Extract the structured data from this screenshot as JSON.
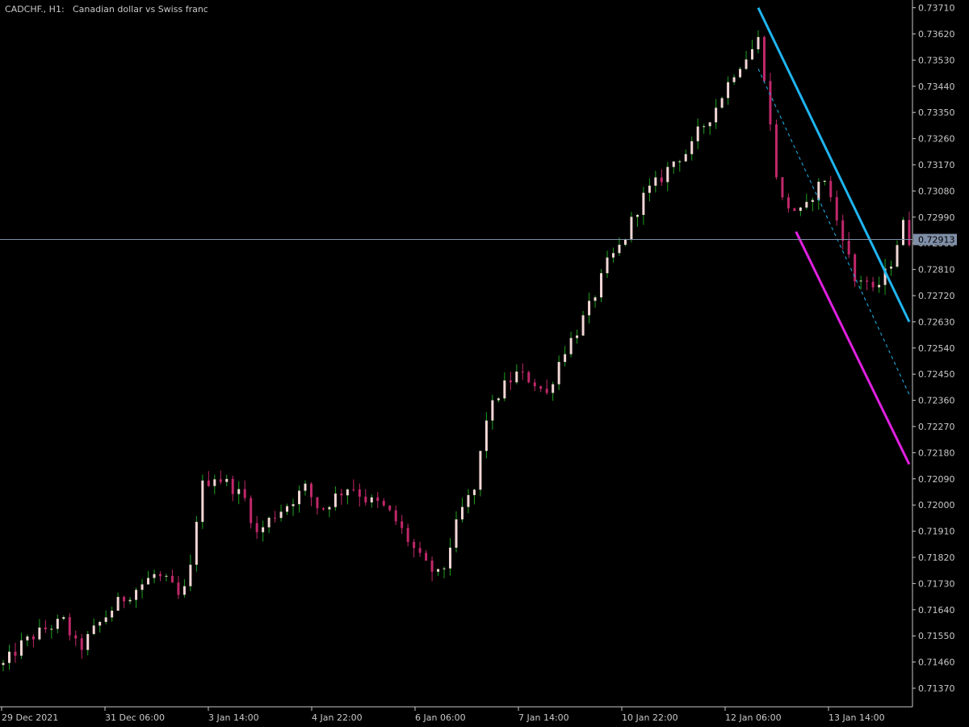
{
  "header": {
    "symbol": "CADCHF., H1:",
    "description": "Canadian dollar vs Swiss franc"
  },
  "colors": {
    "background": "#000000",
    "axis": "#c8c8c8",
    "bull_candle": "#20a020",
    "bear_candle": "#c0286a",
    "body_light": "#f2d6d6",
    "channel_upper": "#1fb5f0",
    "channel_lower": "#e020e0",
    "channel_mid": "#1fb5f0",
    "price_line": "#8090a8",
    "price_tag": "#8090a8"
  },
  "chart_data": {
    "type": "candlestick",
    "instrument": "CADCHF.",
    "timeframe": "H1",
    "ylim": [
      0.7132,
      0.7372
    ],
    "y_ticks": [
      "0.73710",
      "0.73620",
      "0.73530",
      "0.73440",
      "0.73350",
      "0.73260",
      "0.73170",
      "0.73080",
      "0.72990",
      "0.72900",
      "0.72810",
      "0.72720",
      "0.72630",
      "0.72540",
      "0.72450",
      "0.72360",
      "0.72270",
      "0.72180",
      "0.72090",
      "0.72000",
      "0.71910",
      "0.71820",
      "0.71730",
      "0.71640",
      "0.71550",
      "0.71460",
      "0.71370"
    ],
    "x_ticks": [
      "29 Dec 2021",
      "31 Dec 06:00",
      "3 Jan 14:00",
      "4 Jan 22:00",
      "6 Jan 06:00",
      "7 Jan 14:00",
      "10 Jan 22:00",
      "12 Jan 06:00",
      "13 Jan 14:00"
    ],
    "current_price": "0.72913",
    "close_path": [
      [
        0,
        0.7145
      ],
      [
        12,
        0.7152
      ],
      [
        20,
        0.7155
      ],
      [
        30,
        0.7158
      ],
      [
        40,
        0.716
      ],
      [
        50,
        0.715
      ],
      [
        60,
        0.7157
      ],
      [
        75,
        0.7166
      ],
      [
        90,
        0.7172
      ],
      [
        100,
        0.7176
      ],
      [
        110,
        0.7173
      ],
      [
        118,
        0.7167
      ],
      [
        125,
        0.718
      ],
      [
        130,
        0.7206
      ],
      [
        140,
        0.721
      ],
      [
        150,
        0.7207
      ],
      [
        160,
        0.7202
      ],
      [
        168,
        0.719
      ],
      [
        178,
        0.7196
      ],
      [
        190,
        0.7201
      ],
      [
        200,
        0.7206
      ],
      [
        210,
        0.7198
      ],
      [
        220,
        0.7203
      ],
      [
        230,
        0.7207
      ],
      [
        240,
        0.7202
      ],
      [
        250,
        0.72
      ],
      [
        258,
        0.7196
      ],
      [
        268,
        0.7188
      ],
      [
        278,
        0.718
      ],
      [
        290,
        0.7175
      ],
      [
        298,
        0.719
      ],
      [
        305,
        0.72
      ],
      [
        312,
        0.7205
      ],
      [
        320,
        0.723
      ],
      [
        330,
        0.724
      ],
      [
        340,
        0.7245
      ],
      [
        350,
        0.7243
      ],
      [
        360,
        0.7238
      ],
      [
        370,
        0.7252
      ],
      [
        380,
        0.726
      ],
      [
        390,
        0.727
      ],
      [
        400,
        0.7283
      ],
      [
        410,
        0.729
      ],
      [
        418,
        0.73
      ],
      [
        425,
        0.7307
      ],
      [
        435,
        0.7312
      ],
      [
        445,
        0.7319
      ],
      [
        455,
        0.7322
      ],
      [
        460,
        0.7328
      ],
      [
        470,
        0.7335
      ],
      [
        478,
        0.7343
      ],
      [
        485,
        0.735
      ],
      [
        490,
        0.7353
      ],
      [
        495,
        0.7356
      ],
      [
        500,
        0.736
      ],
      [
        505,
        0.7345
      ],
      [
        510,
        0.732
      ],
      [
        515,
        0.7305
      ],
      [
        522,
        0.7302
      ],
      [
        530,
        0.73
      ],
      [
        537,
        0.7308
      ],
      [
        545,
        0.7313
      ],
      [
        550,
        0.73
      ],
      [
        555,
        0.7295
      ],
      [
        560,
        0.7285
      ],
      [
        565,
        0.7275
      ],
      [
        570,
        0.728
      ],
      [
        575,
        0.7272
      ],
      [
        580,
        0.7276
      ],
      [
        587,
        0.7282
      ],
      [
        593,
        0.7292
      ],
      [
        597,
        0.7298
      ],
      [
        600,
        0.7291
      ]
    ],
    "channel": {
      "upper": [
        [
          500,
          0.7371
        ],
        [
          600,
          0.7263
        ]
      ],
      "mid": [
        [
          500,
          0.735
        ],
        [
          600,
          0.7238
        ]
      ],
      "lower": [
        [
          525,
          0.7294
        ],
        [
          600,
          0.7214
        ]
      ]
    },
    "grid": false,
    "legend": "none"
  }
}
